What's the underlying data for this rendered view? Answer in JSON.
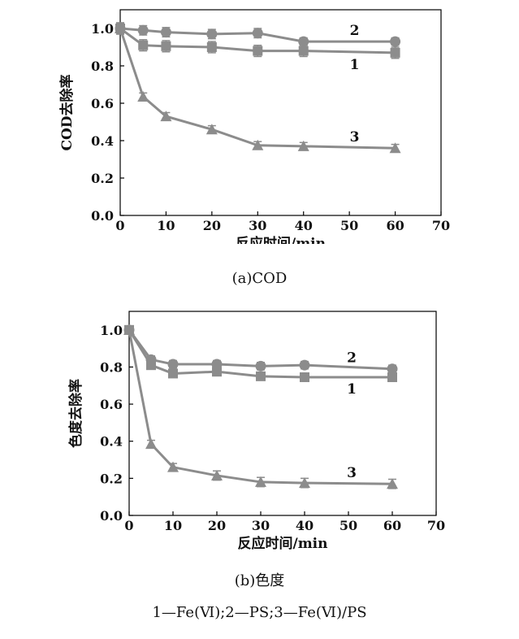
{
  "colors": {
    "series_line": "#8c8c8c",
    "marker_fill": "#8c8c8c",
    "axis": "#000000"
  },
  "captions": {
    "a": "(a)COD",
    "b": "(b)色度",
    "legend_note": "1—Fe(Ⅵ);2—PS;3—Fe(Ⅵ)/PS"
  },
  "chart_data": [
    {
      "type": "line",
      "title": "",
      "xlabel": "反应时间/min",
      "ylabel": "COD去除率",
      "xlim": [
        0,
        70
      ],
      "ylim": [
        0,
        1.1
      ],
      "xticks": [
        0,
        10,
        20,
        30,
        40,
        50,
        60,
        70
      ],
      "yticks": [
        0.0,
        0.2,
        0.4,
        0.6,
        0.8,
        1.0
      ],
      "ytick_labels": [
        "0.0",
        "0.2",
        "0.4",
        "0.6",
        "0.8",
        "1.0"
      ],
      "grid": false,
      "series": [
        {
          "name": "1",
          "marker": "square",
          "x": [
            0,
            5,
            10,
            20,
            30,
            40,
            60
          ],
          "y": [
            1.0,
            0.91,
            0.905,
            0.9,
            0.88,
            0.88,
            0.87
          ],
          "err": [
            0.03,
            0.03,
            0.03,
            0.03,
            0.03,
            0.03,
            0.03
          ]
        },
        {
          "name": "2",
          "marker": "circle",
          "x": [
            0,
            5,
            10,
            20,
            30,
            40,
            60
          ],
          "y": [
            1.0,
            0.99,
            0.98,
            0.97,
            0.975,
            0.93,
            0.93
          ],
          "err": [
            0.03,
            0.025,
            0.025,
            0.025,
            0.025,
            0.02,
            0.02
          ]
        },
        {
          "name": "3",
          "marker": "triangle",
          "x": [
            0,
            5,
            10,
            20,
            30,
            40,
            60
          ],
          "y": [
            1.0,
            0.635,
            0.53,
            0.46,
            0.375,
            0.37,
            0.36
          ],
          "err": [
            0.03,
            0.02,
            0.02,
            0.02,
            0.02,
            0.02,
            0.02
          ]
        }
      ]
    },
    {
      "type": "line",
      "title": "",
      "xlabel": "反应时间/min",
      "ylabel": "色度去除率",
      "xlim": [
        0,
        70
      ],
      "ylim": [
        0,
        1.1
      ],
      "xticks": [
        0,
        10,
        20,
        30,
        40,
        50,
        60,
        70
      ],
      "yticks": [
        0.0,
        0.2,
        0.4,
        0.6,
        0.8,
        1.0
      ],
      "ytick_labels": [
        "0.0",
        "0.2",
        "0.4",
        "0.6",
        "0.8",
        "1.0"
      ],
      "grid": false,
      "series": [
        {
          "name": "1",
          "marker": "square",
          "x": [
            0,
            5,
            10,
            20,
            30,
            40,
            60
          ],
          "y": [
            1.0,
            0.81,
            0.765,
            0.775,
            0.75,
            0.745,
            0.745
          ],
          "err": [
            0.02,
            0.02,
            0.02,
            0.02,
            0.02,
            0.02,
            0.02
          ]
        },
        {
          "name": "2",
          "marker": "circle",
          "x": [
            0,
            5,
            10,
            20,
            30,
            40,
            60
          ],
          "y": [
            1.0,
            0.84,
            0.815,
            0.815,
            0.805,
            0.81,
            0.79
          ],
          "err": [
            0.02,
            0.02,
            0.02,
            0.02,
            0.02,
            0.02,
            0.02
          ]
        },
        {
          "name": "3",
          "marker": "triangle",
          "x": [
            0,
            5,
            10,
            20,
            30,
            40,
            60
          ],
          "y": [
            1.0,
            0.385,
            0.26,
            0.215,
            0.18,
            0.175,
            0.17
          ],
          "err": [
            0.02,
            0.02,
            0.02,
            0.025,
            0.025,
            0.025,
            0.025
          ]
        }
      ]
    }
  ]
}
